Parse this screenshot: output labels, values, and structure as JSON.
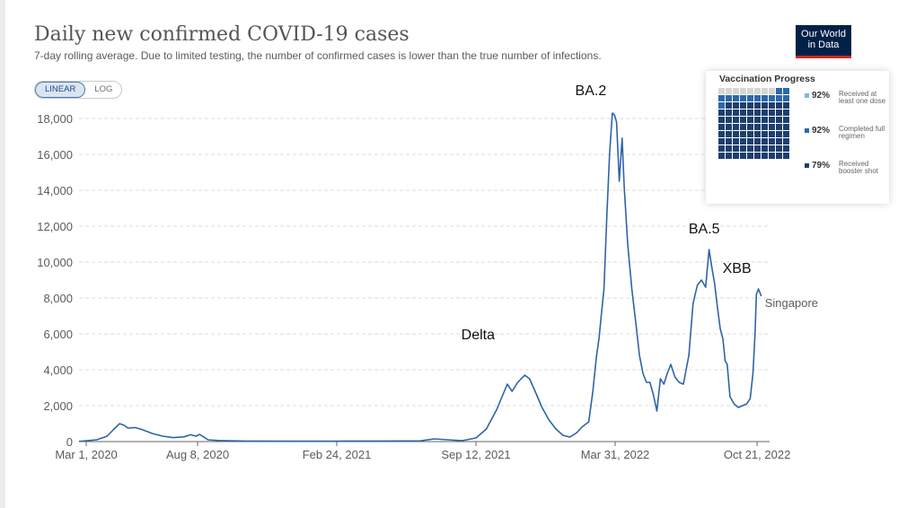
{
  "header": {
    "title": "Daily new confirmed COVID-19 cases",
    "subtitle": "7-day rolling average. Due to limited testing, the number of confirmed cases is lower than the true number of infections.",
    "logo_line1": "Our World",
    "logo_line2": "in Data"
  },
  "scale_toggle": {
    "linear": "LINEAR",
    "log": "LOG",
    "selected": "LINEAR"
  },
  "colors": {
    "line": "#2e64a8",
    "grid": "#dddddd",
    "axis": "#666666",
    "vax_dose1": "#7fb7df",
    "vax_full": "#2b68ac",
    "vax_boost": "#1d3f6e",
    "vax_empty": "#d6d6d6"
  },
  "chart_data": {
    "type": "line",
    "title": "Daily new confirmed COVID-19 cases",
    "xlabel": "",
    "ylabel": "",
    "ylim": [
      0,
      19000
    ],
    "yticks": [
      0,
      2000,
      4000,
      6000,
      8000,
      10000,
      12000,
      14000,
      16000,
      18000
    ],
    "ytick_labels": [
      "0",
      "2,000",
      "4,000",
      "6,000",
      "8,000",
      "10,000",
      "12,000",
      "14,000",
      "16,000",
      "18,000"
    ],
    "xticks": [
      "Mar 1, 2020",
      "Aug 8, 2020",
      "Feb 24, 2021",
      "Sep 12, 2021",
      "Mar 31, 2022",
      "Oct 21, 2022"
    ],
    "xtick_days": [
      0,
      160,
      360,
      560,
      760,
      964
    ],
    "xlim_days": [
      -40,
      964
    ],
    "series": [
      {
        "name": "Singapore",
        "points": [
          [
            -40,
            0
          ],
          [
            -10,
            10
          ],
          [
            15,
            100
          ],
          [
            30,
            300
          ],
          [
            40,
            700
          ],
          [
            48,
            1000
          ],
          [
            55,
            900
          ],
          [
            60,
            750
          ],
          [
            70,
            780
          ],
          [
            78,
            700
          ],
          [
            85,
            600
          ],
          [
            95,
            450
          ],
          [
            110,
            300
          ],
          [
            125,
            220
          ],
          [
            140,
            260
          ],
          [
            150,
            380
          ],
          [
            158,
            300
          ],
          [
            163,
            400
          ],
          [
            168,
            280
          ],
          [
            175,
            100
          ],
          [
            190,
            60
          ],
          [
            230,
            30
          ],
          [
            300,
            20
          ],
          [
            360,
            25
          ],
          [
            420,
            30
          ],
          [
            480,
            40
          ],
          [
            500,
            150
          ],
          [
            520,
            100
          ],
          [
            540,
            50
          ],
          [
            560,
            200
          ],
          [
            575,
            700
          ],
          [
            590,
            1800
          ],
          [
            605,
            3200
          ],
          [
            612,
            2800
          ],
          [
            620,
            3300
          ],
          [
            630,
            3700
          ],
          [
            637,
            3500
          ],
          [
            645,
            2800
          ],
          [
            655,
            1900
          ],
          [
            665,
            1200
          ],
          [
            675,
            700
          ],
          [
            685,
            350
          ],
          [
            695,
            250
          ],
          [
            705,
            500
          ],
          [
            712,
            800
          ],
          [
            722,
            1100
          ],
          [
            728,
            2800
          ],
          [
            733,
            4700
          ],
          [
            737,
            5800
          ],
          [
            740,
            7000
          ],
          [
            744,
            8500
          ],
          [
            748,
            12500
          ],
          [
            752,
            16000
          ],
          [
            756,
            18300
          ],
          [
            759,
            18200
          ],
          [
            762,
            17800
          ],
          [
            766,
            14500
          ],
          [
            770,
            16900
          ],
          [
            773,
            14200
          ],
          [
            778,
            11000
          ],
          [
            784,
            8500
          ],
          [
            790,
            6500
          ],
          [
            795,
            4800
          ],
          [
            800,
            3800
          ],
          [
            805,
            3300
          ],
          [
            810,
            3300
          ],
          [
            815,
            2600
          ],
          [
            820,
            1700
          ],
          [
            825,
            3500
          ],
          [
            830,
            3200
          ],
          [
            835,
            3800
          ],
          [
            840,
            4300
          ],
          [
            846,
            3600
          ],
          [
            852,
            3300
          ],
          [
            858,
            3200
          ],
          [
            866,
            4800
          ],
          [
            872,
            7700
          ],
          [
            878,
            8700
          ],
          [
            884,
            9000
          ],
          [
            890,
            8600
          ],
          [
            895,
            10700
          ],
          [
            899,
            9700
          ],
          [
            903,
            8800
          ],
          [
            907,
            7500
          ],
          [
            911,
            6300
          ],
          [
            915,
            5700
          ],
          [
            918,
            4500
          ],
          [
            921,
            4300
          ],
          [
            925,
            2500
          ],
          [
            931,
            2100
          ],
          [
            937,
            1900
          ],
          [
            943,
            2000
          ],
          [
            949,
            2100
          ],
          [
            954,
            2400
          ],
          [
            958,
            3800
          ],
          [
            961,
            6000
          ],
          [
            963,
            8200
          ],
          [
            966,
            8500
          ],
          [
            970,
            8100
          ]
        ]
      }
    ],
    "series_label": "Singapore",
    "annotations": [
      {
        "text": "Delta",
        "day": 563,
        "value": 5700
      },
      {
        "text": "BA.2",
        "day": 725,
        "value": 19300
      },
      {
        "text": "BA.5",
        "day": 888,
        "value": 11600
      },
      {
        "text": "XBB",
        "day": 935,
        "value": 9400
      }
    ]
  },
  "vaccination": {
    "title": "Vaccination Progress",
    "items": [
      {
        "pct": "92%",
        "label": "Received at least one dose",
        "value": 92
      },
      {
        "pct": "92%",
        "label": "Completed full regimen",
        "value": 92
      },
      {
        "pct": "79%",
        "label": "Received booster shot",
        "value": 79
      }
    ]
  }
}
